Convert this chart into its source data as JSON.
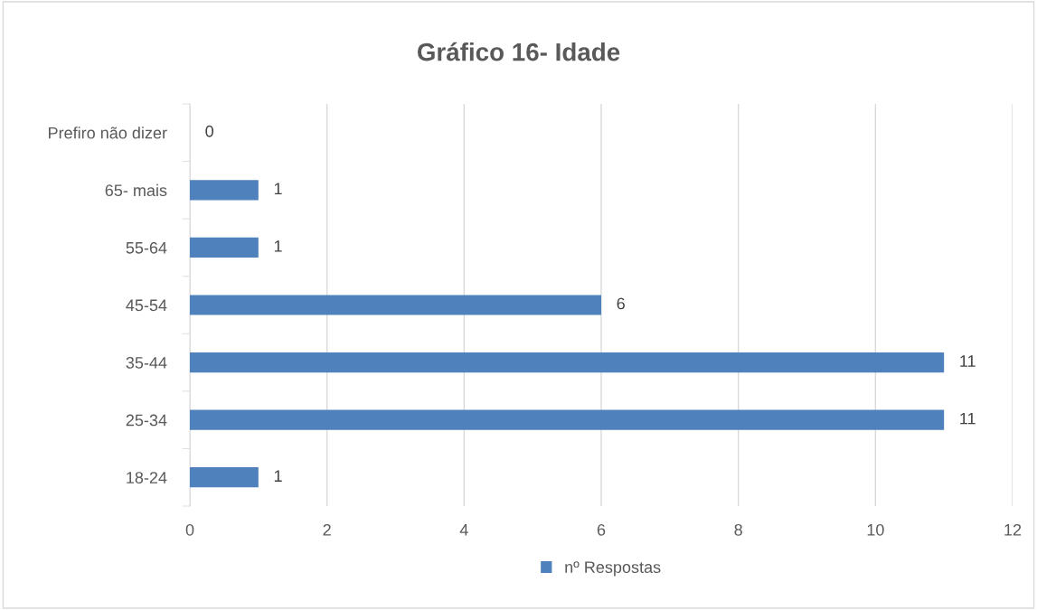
{
  "chart_data": {
    "type": "bar",
    "orientation": "horizontal",
    "title": "Gráfico 16- Idade",
    "categories": [
      "Prefiro não dizer",
      "65- mais",
      "55-64",
      "45-54",
      "35-44",
      "25-34",
      "18-24"
    ],
    "series": [
      {
        "name": "nº Respostas",
        "color": "#4f81bd",
        "values": [
          0,
          1,
          1,
          6,
          11,
          11,
          1
        ]
      }
    ],
    "xlim": [
      0,
      12
    ],
    "xticks": [
      0,
      2,
      4,
      6,
      8,
      10,
      12
    ],
    "grid": "x",
    "legend": "bottom",
    "data_labels": true
  }
}
